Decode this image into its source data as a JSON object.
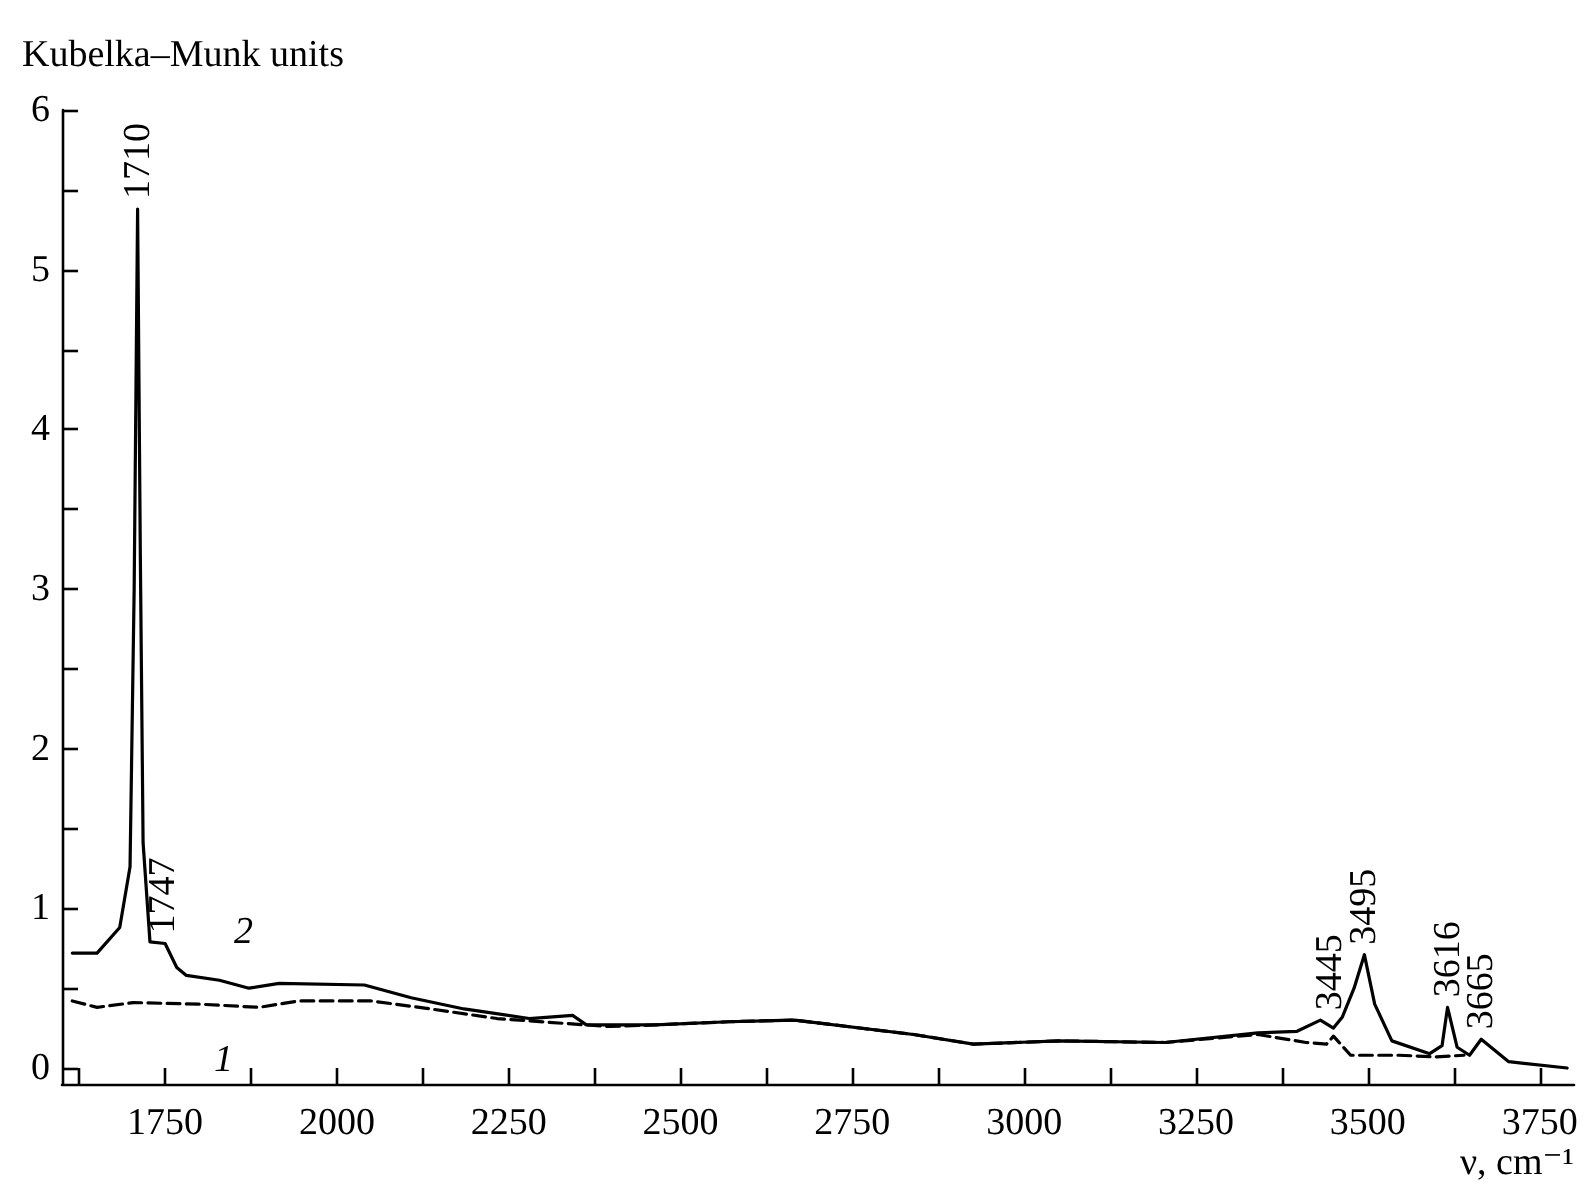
{
  "chart_data": {
    "type": "line",
    "xlabel": "ν, cm⁻¹",
    "ylabel": "Kubelka–Munk units",
    "xlim": [
      1600,
      3800
    ],
    "xticks": [
      {
        "value": 1625,
        "label": null
      },
      1750,
      {
        "value": 1875,
        "label": null
      },
      2000,
      {
        "value": 2125,
        "label": null
      },
      2250,
      {
        "value": 2375,
        "label": null
      },
      2500,
      {
        "value": 2625,
        "label": null
      },
      2750,
      {
        "value": 2875,
        "label": null
      },
      3000,
      {
        "value": 3125,
        "label": null
      },
      3250,
      {
        "value": 3375,
        "label": null
      },
      3500,
      {
        "value": 3625,
        "label": null
      },
      3750
    ],
    "ylim": [
      -0.1,
      6
    ],
    "yticks": [
      0,
      {
        "value": 0.5,
        "label": null
      },
      1,
      {
        "value": 1.5,
        "label": null
      },
      2,
      {
        "value": 2.5,
        "label": null
      },
      3,
      {
        "value": 3.5,
        "label": null
      },
      4,
      {
        "value": 4.5,
        "label": null
      },
      5,
      {
        "value": 5.5,
        "label": null
      },
      6
    ],
    "grid": false,
    "marker": "none",
    "series": [
      {
        "color": "#000000",
        "line_style": "dashed",
        "x": [
          1615,
          1651,
          1704,
          1800,
          1887,
          1944,
          2050,
          2137,
          2233,
          2329,
          2397,
          2463,
          2570,
          2666,
          2839,
          2926,
          3051,
          3205,
          3340,
          3410,
          3440,
          3450,
          3475,
          3545,
          3600,
          3640
        ],
        "values": [
          0.42,
          0.38,
          0.41,
          0.4,
          0.38,
          0.42,
          0.42,
          0.37,
          0.31,
          0.28,
          0.26,
          0.27,
          0.29,
          0.3,
          0.21,
          0.15,
          0.17,
          0.16,
          0.21,
          0.16,
          0.15,
          0.2,
          0.08,
          0.08,
          0.07,
          0.08
        ]
      },
      {
        "color": "#000000",
        "line_style": "solid",
        "x": [
          1615,
          1651,
          1684,
          1699,
          1705,
          1710,
          1714,
          1718,
          1728,
          1750,
          1767,
          1781,
          1829,
          1872,
          1916,
          2040,
          2108,
          2185,
          2280,
          2343,
          2363,
          2463,
          2570,
          2666,
          2839,
          2926,
          3051,
          3205,
          3340,
          3397,
          3431,
          3450,
          3463,
          3480,
          3495,
          3510,
          3535,
          3590,
          3608,
          3616,
          3630,
          3648,
          3665,
          3705,
          3790
        ],
        "values": [
          0.72,
          0.72,
          0.88,
          1.26,
          3.0,
          5.38,
          3.2,
          1.41,
          0.79,
          0.78,
          0.63,
          0.58,
          0.55,
          0.5,
          0.53,
          0.52,
          0.44,
          0.37,
          0.31,
          0.33,
          0.27,
          0.27,
          0.29,
          0.3,
          0.21,
          0.15,
          0.17,
          0.16,
          0.22,
          0.23,
          0.3,
          0.25,
          0.32,
          0.5,
          0.71,
          0.4,
          0.17,
          0.09,
          0.14,
          0.38,
          0.13,
          0.08,
          0.18,
          0.04,
          0.0
        ]
      }
    ],
    "annotations": [
      {
        "text": "1710",
        "x": 1710,
        "y": 5.38
      },
      {
        "text": "1747",
        "x": 1747,
        "y": 0.78
      },
      {
        "text": "3445",
        "x": 3445,
        "y": 0.3
      },
      {
        "text": "3495",
        "x": 3495,
        "y": 0.71
      },
      {
        "text": "3616",
        "x": 3616,
        "y": 0.38
      },
      {
        "text": "3665",
        "x": 3665,
        "y": 0.18
      },
      {
        "text": "2",
        "x": 1829,
        "y": 0.55
      },
      {
        "text": "1",
        "x": 1800,
        "y": 0.4
      }
    ]
  }
}
